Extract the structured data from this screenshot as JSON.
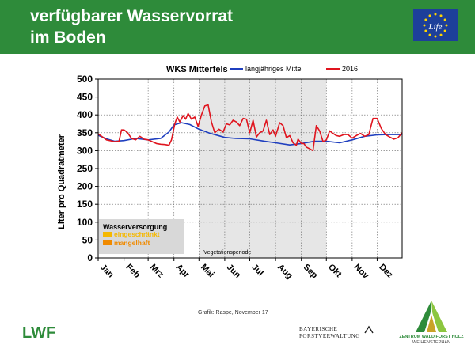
{
  "header": {
    "title_line1": "verfügbarer Wasservorrat",
    "title_line2": "im Boden"
  },
  "logos": {
    "eu_life": "Life",
    "lwf": "LWF",
    "bfv_line1": "BAYERISCHE",
    "bfv_line2": "FORSTVERWALTUNG",
    "zwf_line1": "ZENTRUM WALD FORST HOLZ",
    "zwf_line2": "WEIHENSTEPHAN"
  },
  "credit": "Grafik: Raspe, November 17",
  "chart_data": {
    "type": "line",
    "title": "WKS Mitterfels",
    "ylabel": "Liter pro Quadratmeter",
    "ylim": [
      0,
      500
    ],
    "yticks": [
      0,
      50,
      100,
      150,
      200,
      250,
      300,
      350,
      400,
      450,
      500
    ],
    "xlim": [
      0,
      365
    ],
    "months": [
      "Jan",
      "Feb",
      "Mrz",
      "Apr",
      "Mai",
      "Jun",
      "Jul",
      "Aug",
      "Sep",
      "Okt",
      "Nov",
      "Dez"
    ],
    "month_starts": [
      0,
      31,
      60,
      91,
      121,
      152,
      182,
      213,
      244,
      274,
      305,
      335
    ],
    "grid": true,
    "vegetation_period": {
      "label": "Vegetationsperiode",
      "start": 121,
      "end": 274
    },
    "legend_box": {
      "title": "Wasserversorgung",
      "items": [
        {
          "label": "eingeschränkt",
          "color": "#f5b800"
        },
        {
          "label": "mangelhaft",
          "color": "#f08a00"
        }
      ]
    },
    "series": [
      {
        "name": "langjähriges Mittel",
        "color": "#1f3fbf",
        "x": [
          0,
          10,
          20,
          31,
          45,
          60,
          75,
          85,
          91,
          100,
          110,
          121,
          135,
          152,
          165,
          182,
          200,
          213,
          230,
          244,
          260,
          274,
          290,
          305,
          320,
          335,
          350,
          365
        ],
        "y": [
          343,
          333,
          326,
          328,
          334,
          330,
          334,
          352,
          372,
          378,
          373,
          360,
          348,
          337,
          334,
          333,
          326,
          322,
          316,
          320,
          326,
          326,
          322,
          330,
          340,
          344,
          345,
          345
        ]
      },
      {
        "name": "2016",
        "color": "#e0141e",
        "x": [
          0,
          10,
          20,
          25,
          28,
          31,
          35,
          40,
          45,
          50,
          55,
          60,
          65,
          70,
          75,
          80,
          85,
          88,
          92,
          95,
          98,
          102,
          105,
          108,
          112,
          116,
          120,
          124,
          128,
          132,
          136,
          140,
          145,
          150,
          154,
          158,
          162,
          166,
          170,
          174,
          178,
          182,
          186,
          190,
          194,
          198,
          202,
          206,
          210,
          213,
          218,
          222,
          226,
          230,
          234,
          238,
          240,
          244,
          247,
          250,
          254,
          258,
          262,
          266,
          270,
          274,
          278,
          282,
          286,
          290,
          295,
          300,
          305,
          310,
          315,
          320,
          325,
          330,
          335,
          340,
          345,
          350,
          355,
          360,
          365
        ],
        "y": [
          347,
          330,
          325,
          326,
          358,
          358,
          351,
          334,
          330,
          340,
          332,
          330,
          325,
          320,
          318,
          317,
          315,
          330,
          375,
          394,
          380,
          398,
          388,
          404,
          388,
          394,
          368,
          400,
          425,
          428,
          380,
          350,
          360,
          352,
          375,
          372,
          385,
          380,
          370,
          390,
          388,
          350,
          385,
          338,
          350,
          355,
          385,
          345,
          358,
          340,
          378,
          370,
          336,
          342,
          322,
          315,
          332,
          320,
          320,
          310,
          305,
          300,
          370,
          355,
          325,
          330,
          355,
          348,
          342,
          340,
          345,
          345,
          335,
          342,
          348,
          340,
          345,
          390,
          390,
          362,
          345,
          338,
          332,
          336,
          350
        ]
      }
    ]
  }
}
